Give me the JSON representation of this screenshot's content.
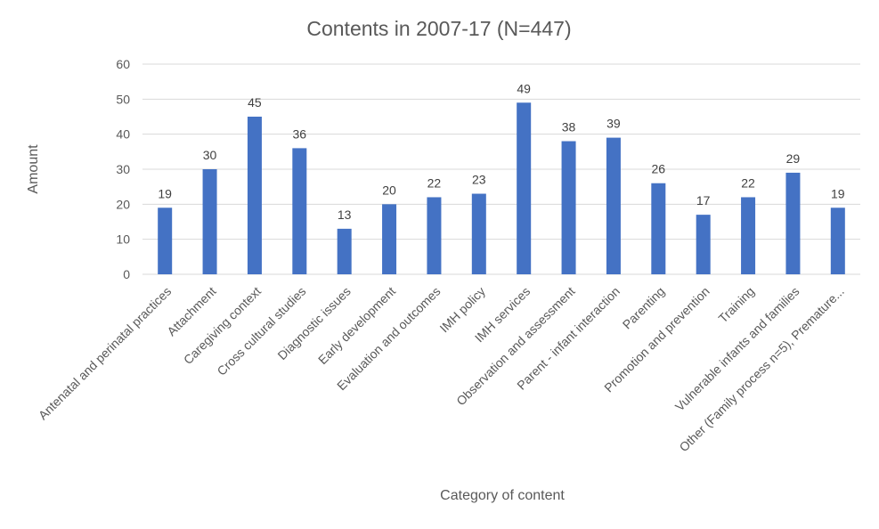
{
  "chart_data": {
    "type": "bar",
    "title": "Contents in 2007-17 (N=447)",
    "xlabel": "Category of content",
    "ylabel": "Amount",
    "ylim": [
      0,
      60
    ],
    "yticks": [
      0,
      10,
      20,
      30,
      40,
      50,
      60
    ],
    "grid": true,
    "legend": "none",
    "bar_color": "#4472C4",
    "categories": [
      "Antenatal and perinatal practices",
      "Attachment",
      "Caregiving context",
      "Cross cultural studies",
      "Diagnostic issues",
      "Early development",
      "Evaluation and outcomes",
      "IMH policy",
      "IMH services",
      "Observation and assessment",
      "Parent - infant interaction",
      "Parenting",
      "Promotion and prevention",
      "Training",
      "Vulnerable infants and families",
      "Other (Family process n=5), Premature..."
    ],
    "values": [
      19,
      30,
      45,
      36,
      13,
      20,
      22,
      23,
      49,
      38,
      39,
      26,
      17,
      22,
      29,
      19
    ]
  }
}
